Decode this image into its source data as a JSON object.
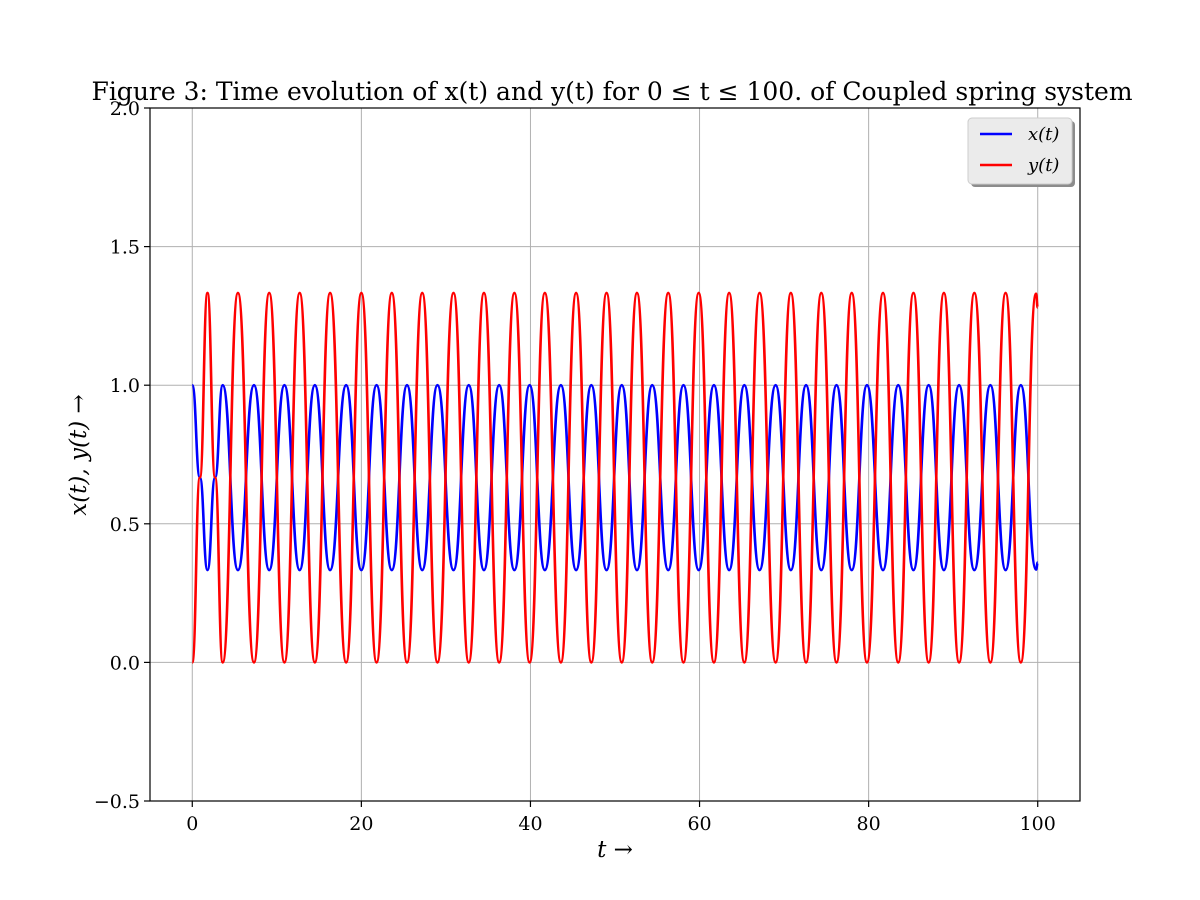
{
  "chart_data": {
    "type": "line",
    "title": "Figure 3: Time evolution of x(t) and y(t) for 0 ≤ t ≤ 100. of Coupled spring system",
    "xlabel": "t →",
    "ylabel": "x(t), y(t) →",
    "xlim": [
      -5,
      105
    ],
    "ylim": [
      -0.5,
      2.0
    ],
    "xticks": [
      0,
      20,
      40,
      60,
      80,
      100
    ],
    "xtick_labels": [
      "0",
      "20",
      "40",
      "60",
      "80",
      "100"
    ],
    "yticks": [
      -0.5,
      0.0,
      0.5,
      1.0,
      1.5,
      2.0
    ],
    "ytick_labels": [
      "−0.5",
      "0.0",
      "0.5",
      "1.0",
      "1.5",
      "2.0"
    ],
    "grid": true,
    "legend_position": "top-right",
    "series": [
      {
        "name": "x(t)",
        "color": "#0000ff",
        "x": [
          0,
          0.9,
          1.8,
          2.7,
          3.6,
          5.4,
          7.3,
          9.1,
          10.9,
          12.7,
          14.5,
          16.3,
          18.2,
          20.0,
          21.8,
          23.6,
          25.4,
          27.2,
          29.0,
          30.9,
          32.7,
          34.5,
          36.3,
          38.1,
          39.9,
          41.7,
          43.6,
          45.4,
          47.2,
          49.0,
          50.8,
          52.6,
          54.4,
          56.3,
          58.1,
          59.9,
          61.7,
          63.5,
          65.3,
          67.1,
          69.0,
          70.8,
          72.6,
          74.4,
          76.2,
          78.0,
          79.8,
          81.7,
          83.5,
          85.3,
          87.1,
          88.9,
          90.7,
          92.5,
          94.4,
          96.2,
          98.0,
          99.8,
          100.0
        ],
        "y": [
          1.0,
          0.667,
          0.333,
          0.667,
          1.0,
          0.333,
          1.0,
          0.333,
          1.0,
          0.333,
          1.0,
          0.333,
          1.0,
          0.333,
          1.0,
          0.333,
          1.0,
          0.333,
          1.0,
          0.333,
          1.0,
          0.333,
          1.0,
          0.333,
          1.0,
          0.333,
          1.0,
          0.333,
          1.0,
          0.333,
          1.0,
          0.333,
          1.0,
          0.333,
          1.0,
          0.333,
          1.0,
          0.333,
          1.0,
          0.333,
          1.0,
          0.333,
          1.0,
          0.333,
          1.0,
          0.333,
          1.0,
          0.333,
          1.0,
          0.333,
          1.0,
          0.333,
          1.0,
          0.333,
          1.0,
          0.333,
          1.0,
          0.335,
          0.36
        ]
      },
      {
        "name": "y(t)",
        "color": "#ff0000",
        "x": [
          0,
          0.9,
          1.8,
          2.7,
          3.6,
          5.4,
          7.3,
          9.1,
          10.9,
          12.7,
          14.5,
          16.3,
          18.2,
          20.0,
          21.8,
          23.6,
          25.4,
          27.2,
          29.0,
          30.9,
          32.7,
          34.5,
          36.3,
          38.1,
          39.9,
          41.7,
          43.6,
          45.4,
          47.2,
          49.0,
          50.8,
          52.6,
          54.4,
          56.3,
          58.1,
          59.9,
          61.7,
          63.5,
          65.3,
          67.1,
          69.0,
          70.8,
          72.6,
          74.4,
          76.2,
          78.0,
          79.8,
          81.7,
          83.5,
          85.3,
          87.1,
          88.9,
          90.7,
          92.5,
          94.4,
          96.2,
          98.0,
          99.8,
          100.0
        ],
        "y": [
          0.0,
          0.667,
          1.333,
          0.667,
          0.0,
          1.333,
          0.0,
          1.333,
          0.0,
          1.333,
          0.0,
          1.333,
          0.0,
          1.333,
          0.0,
          1.333,
          0.0,
          1.333,
          0.0,
          1.333,
          0.0,
          1.333,
          0.0,
          1.333,
          0.0,
          1.333,
          0.0,
          1.333,
          0.0,
          1.333,
          0.0,
          1.333,
          0.0,
          1.333,
          0.0,
          1.333,
          0.0,
          1.333,
          0.0,
          1.333,
          0.0,
          1.333,
          0.0,
          1.333,
          0.0,
          1.333,
          0.0,
          1.333,
          0.0,
          1.333,
          0.0,
          1.333,
          0.0,
          1.333,
          0.0,
          1.333,
          0.0,
          1.33,
          1.28
        ]
      }
    ]
  }
}
